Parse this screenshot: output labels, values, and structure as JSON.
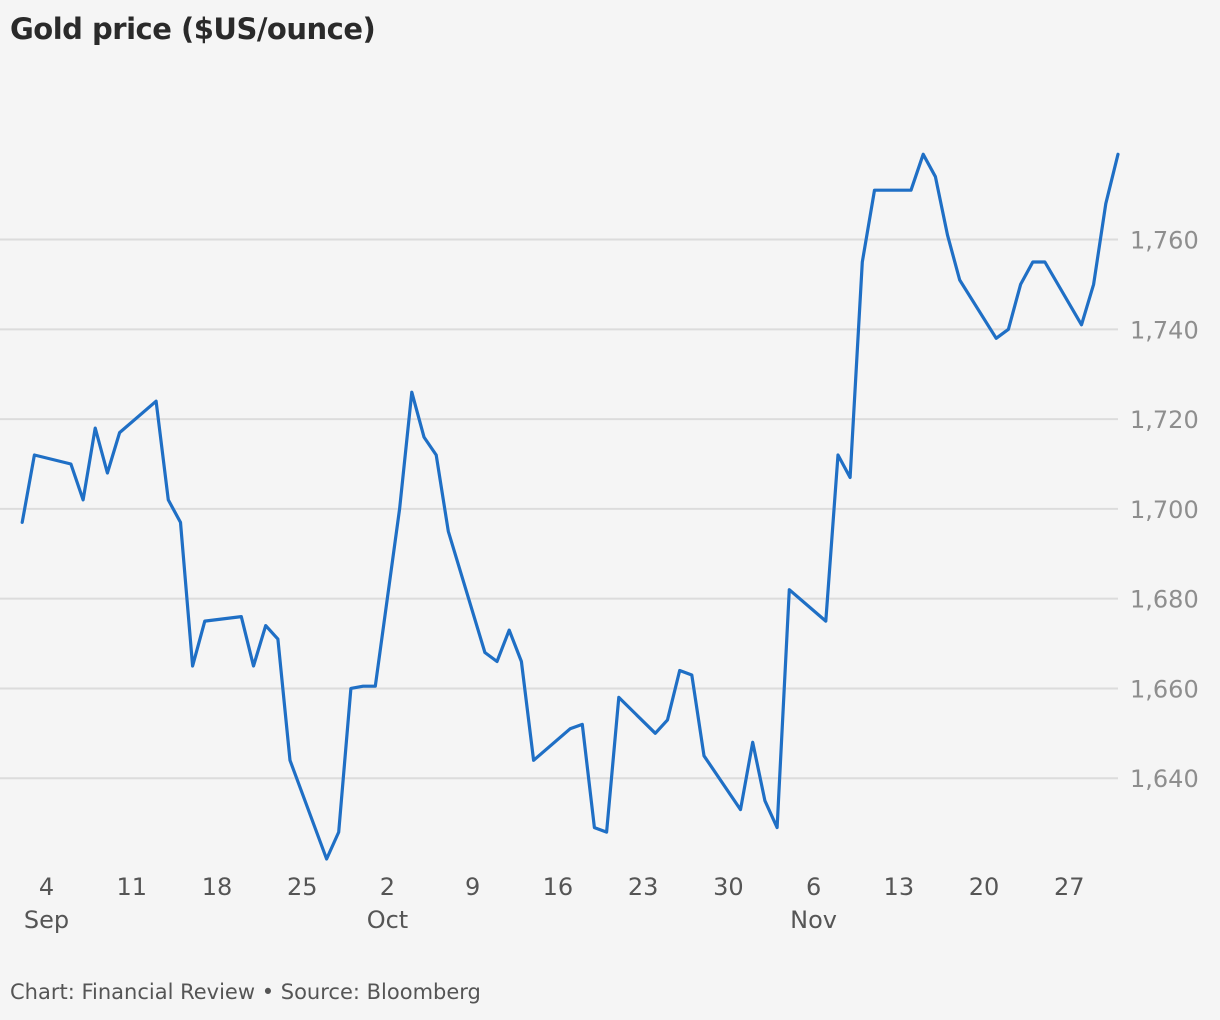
{
  "chart_data": {
    "type": "line",
    "title": "Gold price ($US/ounce)",
    "footer": "Chart: Financial Review • Source: Bloomberg",
    "ylim": [
      1620,
      1800
    ],
    "yticks": [
      1640,
      1660,
      1680,
      1700,
      1720,
      1740,
      1760
    ],
    "ytick_labels": [
      "1,640",
      "1,660",
      "1,680",
      "1,700",
      "1,720",
      "1,740",
      "1,760"
    ],
    "grid": true,
    "y_axis_side": "right",
    "line_color": "#1f6fc5",
    "grid_color": "#dcdcdc",
    "xlim": [
      "2022-09-01",
      "2022-12-01"
    ],
    "xticks": [
      "2022-09-04",
      "2022-09-11",
      "2022-09-18",
      "2022-09-25",
      "2022-10-02",
      "2022-10-09",
      "2022-10-16",
      "2022-10-23",
      "2022-10-30",
      "2022-11-06",
      "2022-11-13",
      "2022-11-20",
      "2022-11-27"
    ],
    "xtick_labels": [
      "4",
      "11",
      "18",
      "25",
      "2",
      "9",
      "16",
      "23",
      "30",
      "6",
      "13",
      "20",
      "27"
    ],
    "month_labels": [
      {
        "date": "2022-09-04",
        "label": "Sep"
      },
      {
        "date": "2022-10-02",
        "label": "Oct"
      },
      {
        "date": "2022-11-06",
        "label": "Nov"
      }
    ],
    "x": [
      "2022-09-02",
      "2022-09-03",
      "2022-09-06",
      "2022-09-07",
      "2022-09-08",
      "2022-09-09",
      "2022-09-10",
      "2022-09-13",
      "2022-09-14",
      "2022-09-15",
      "2022-09-16",
      "2022-09-17",
      "2022-09-20",
      "2022-09-21",
      "2022-09-22",
      "2022-09-23",
      "2022-09-24",
      "2022-09-27",
      "2022-09-28",
      "2022-09-29",
      "2022-09-30",
      "2022-10-01",
      "2022-10-03",
      "2022-10-04",
      "2022-10-05",
      "2022-10-06",
      "2022-10-07",
      "2022-10-10",
      "2022-10-11",
      "2022-10-12",
      "2022-10-13",
      "2022-10-14",
      "2022-10-17",
      "2022-10-18",
      "2022-10-19",
      "2022-10-20",
      "2022-10-21",
      "2022-10-24",
      "2022-10-25",
      "2022-10-26",
      "2022-10-27",
      "2022-10-28",
      "2022-10-31",
      "2022-11-01",
      "2022-11-02",
      "2022-11-03",
      "2022-11-04",
      "2022-11-07",
      "2022-11-08",
      "2022-11-09",
      "2022-11-10",
      "2022-11-11",
      "2022-11-14",
      "2022-11-15",
      "2022-11-16",
      "2022-11-17",
      "2022-11-18",
      "2022-11-21",
      "2022-11-22",
      "2022-11-23",
      "2022-11-24",
      "2022-11-25",
      "2022-11-28",
      "2022-11-29",
      "2022-11-30",
      "2022-12-01"
    ],
    "series": [
      {
        "values": [
          1697,
          1712,
          1710,
          1702,
          1718,
          1708,
          1717,
          1724,
          1702,
          1697,
          1665,
          1675,
          1676,
          1665,
          1674,
          1671,
          1644,
          1622,
          1628,
          1660,
          1660.5,
          1660.5,
          1700,
          1726,
          1716,
          1712,
          1695,
          1668,
          1666,
          1673,
          1666,
          1644,
          1651,
          1652,
          1629,
          1628,
          1658,
          1650,
          1653,
          1664,
          1663,
          1645,
          1633,
          1648,
          1635,
          1629,
          1682,
          1675,
          1712,
          1707,
          1755,
          1771,
          1771,
          1779,
          1774,
          1761,
          1751,
          1738,
          1740,
          1750,
          1755,
          1755,
          1741,
          1750,
          1768,
          1779
        ]
      }
    ]
  }
}
